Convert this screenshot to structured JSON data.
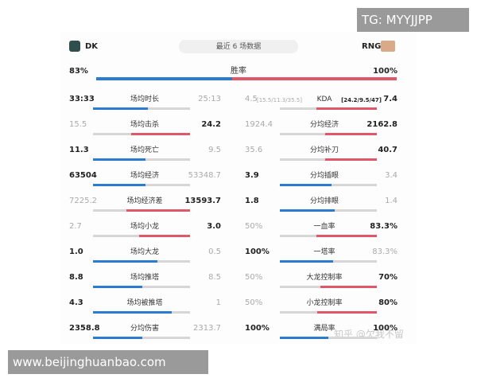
{
  "header": {
    "team_left": "DK",
    "team_right": "RNG",
    "subtitle": "最近 6 场数据"
  },
  "win_rate": {
    "left": "83%",
    "label": "胜率",
    "right": "100%"
  },
  "left_stats": [
    {
      "left": "33:33",
      "label": "场均时长",
      "right": "25:13"
    },
    {
      "left": "15.5",
      "label": "场均击杀",
      "right": "24.2"
    },
    {
      "left": "11.3",
      "label": "场均死亡",
      "right": "9.5"
    },
    {
      "left": "63504",
      "label": "场均经济",
      "right": "53348.7"
    },
    {
      "left": "7225.2",
      "label": "场均经济差",
      "right": "13593.7"
    },
    {
      "left": "2.7",
      "label": "场均小龙",
      "right": "3.0"
    },
    {
      "left": "1.0",
      "label": "场均大龙",
      "right": "0.5"
    },
    {
      "left": "8.8",
      "label": "场均推塔",
      "right": "8.5"
    },
    {
      "left": "4.3",
      "label": "场均被推塔",
      "right": "1"
    },
    {
      "left": "2358.8",
      "label": "分均伤害",
      "right": "2313.7"
    }
  ],
  "right_stats": [
    {
      "left": "4.5",
      "left_note": "[15.5/11.3/35.5]",
      "label": "KDA",
      "right_note": "[24.2/9.5/47]",
      "right": "7.4"
    },
    {
      "left": "1924.4",
      "label": "分均经济",
      "right": "2162.8"
    },
    {
      "left": "35.6",
      "label": "分均补刀",
      "right": "40.7"
    },
    {
      "left": "3.9",
      "label": "分均插眼",
      "right": "3.4"
    },
    {
      "left": "1.8",
      "label": "分均排眼",
      "right": "1.4"
    },
    {
      "left": "50%",
      "label": "一血率",
      "right": "83.3%"
    },
    {
      "left": "100%",
      "label": "一塔率",
      "right": "83.3%"
    },
    {
      "left": "50%",
      "label": "大龙控制率",
      "right": "70%"
    },
    {
      "left": "50%",
      "label": "小龙控制率",
      "right": "80%"
    },
    {
      "left": "100%",
      "label": "满局率",
      "right": "100%"
    }
  ],
  "watermarks": {
    "top_right": "TG: MYYJJPP",
    "bottom_left": "www.beijinghuanbao.com",
    "zhihu": "知乎 @欠我不留"
  }
}
